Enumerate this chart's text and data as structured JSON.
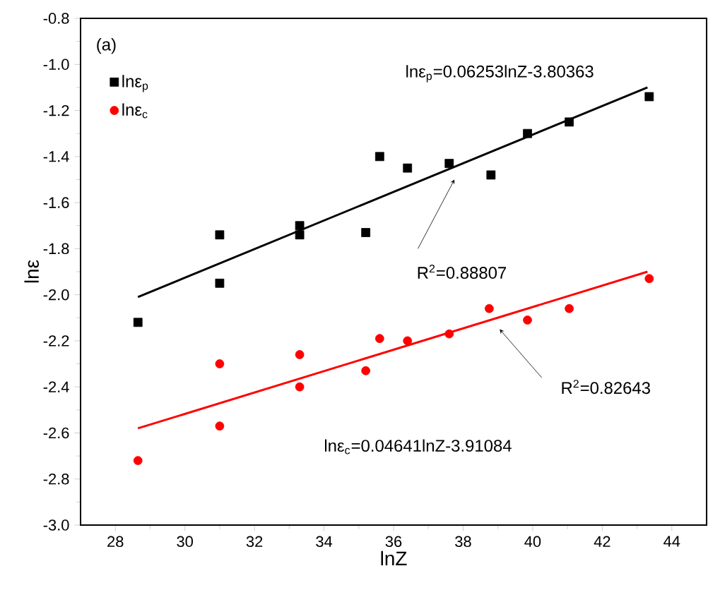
{
  "chart_data": {
    "type": "scatter",
    "xlabel": "lnZ",
    "ylabel": "lnε",
    "xlim": [
      27,
      45
    ],
    "xticks": [
      28,
      30,
      32,
      34,
      36,
      38,
      40,
      42,
      44
    ],
    "ylim": [
      -3.0,
      -0.8
    ],
    "yticks": [
      {
        "value": -3.0,
        "label": "-3.0"
      },
      -2.8,
      -2.6,
      -2.4,
      -2.2,
      {
        "value": -2.0,
        "label": "-2.0"
      },
      -1.8,
      -1.6,
      -1.4,
      -1.2,
      {
        "value": -1.0,
        "label": "-1.0"
      },
      -0.8
    ],
    "legend": "top left",
    "grid": false,
    "series": [
      {
        "name": "lnε$_{p}$",
        "color": "#000000",
        "marker": "square",
        "x": [
          28.65,
          31.0,
          31.0,
          33.3,
          33.3,
          35.2,
          35.6,
          36.4,
          37.6,
          38.8,
          39.85,
          41.05,
          43.35
        ],
        "values": [
          -2.12,
          -1.74,
          -1.95,
          -1.7,
          -1.74,
          -1.73,
          -1.4,
          -1.45,
          -1.43,
          -1.48,
          -1.3,
          -1.25,
          -1.14
        ]
      },
      {
        "name": "lnε$_{c}$",
        "color": "#ff0000",
        "marker": "circle",
        "x": [
          28.65,
          31.0,
          31.0,
          33.3,
          33.3,
          35.2,
          35.6,
          36.4,
          37.6,
          38.75,
          39.85,
          41.05,
          43.35
        ],
        "values": [
          -2.72,
          -2.3,
          -2.57,
          -2.26,
          -2.4,
          -2.33,
          -2.19,
          -2.2,
          -2.17,
          -2.06,
          -2.11,
          -2.06,
          -1.93
        ]
      },
      {
        "type": "line",
        "color": "#000000",
        "x": [
          28.65,
          43.3
        ],
        "values": [
          -2.01,
          -1.1
        ]
      },
      {
        "type": "line",
        "color": "#ff0000",
        "x": [
          28.65,
          43.3
        ],
        "values": [
          -2.58,
          -1.9
        ]
      }
    ],
    "annotations": [
      "(a)",
      "lnε$_{p}$=0.06253lnZ-3.80363",
      {
        "text": "R$^{2}$=0.88807",
        "x": 37.75,
        "y": -1.5
      },
      {
        "text": "R$^{2}$=0.82643",
        "x": 39.05,
        "y": -2.15
      },
      "lnε$_{c}$=0.04641lnZ-3.91084"
    ]
  }
}
